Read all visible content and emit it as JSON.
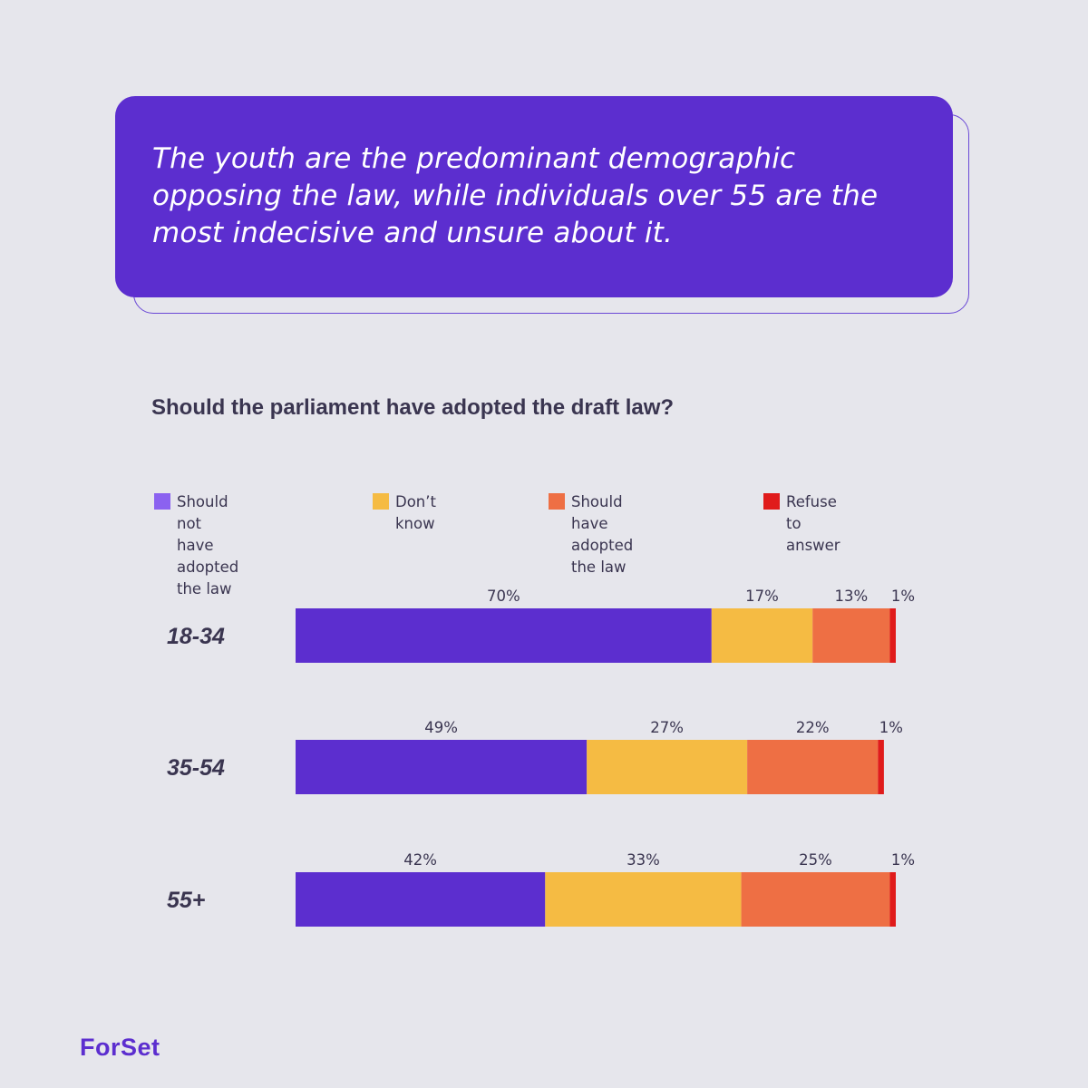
{
  "quote": {
    "text": "The youth are the predominant demographic opposing the law, while individuals over 55 are the most indecisive and unsure about it."
  },
  "colors": {
    "background": "#e6e6ec",
    "accent": "#5c2ecf"
  },
  "logo": {
    "text": "ForSet"
  },
  "chart_data": {
    "type": "bar",
    "orientation": "horizontal-stacked",
    "title": "Should the parliament have adopted the draft law?",
    "categories": [
      "18-34",
      "35-54",
      "55+"
    ],
    "series": [
      {
        "name": "Should not have\nadopted the law",
        "color": "#5c2ecf",
        "legend_color": "#8b62f0",
        "values": [
          70,
          49,
          42
        ],
        "labels": [
          "70%",
          "49%",
          "42%"
        ]
      },
      {
        "name": "Don’t know",
        "color": "#f5bb43",
        "legend_color": "#f5bb43",
        "values": [
          17,
          27,
          33
        ],
        "labels": [
          "17%",
          "27%",
          "33%"
        ]
      },
      {
        "name": "Should have\nadopted the law",
        "color": "#ee6f44",
        "legend_color": "#ee6f44",
        "values": [
          13,
          22,
          25
        ],
        "labels": [
          "13%",
          "22%",
          "25%"
        ]
      },
      {
        "name": "Refuse to answer",
        "color": "#e01b1b",
        "legend_color": "#e01b1b",
        "values": [
          1,
          1,
          1
        ],
        "labels": [
          "1%",
          "1%",
          "1%"
        ]
      }
    ],
    "xlim": [
      0,
      101
    ],
    "legend_position": "top",
    "grid": false
  }
}
